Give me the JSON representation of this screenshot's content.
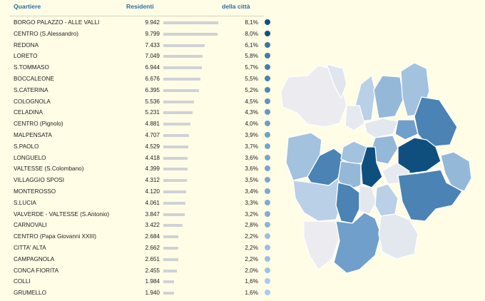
{
  "header": {
    "quartiere": "Quartiere",
    "residenti": "Residenti",
    "pct": "della città"
  },
  "colors": {
    "scale_dark": "#0f4f7e",
    "scale_light": "#a8ccea"
  },
  "chart_data": {
    "type": "table",
    "max_value": 9942,
    "rows": [
      {
        "name": "BORGO PALAZZO - ALLE VALLI",
        "value": 9942,
        "value_label": "9.942",
        "pct": 8.1,
        "pct_label": "8,1%"
      },
      {
        "name": "CENTRO (S.Alessandro)",
        "value": 9799,
        "value_label": "9.799",
        "pct": 8.0,
        "pct_label": "8,0%"
      },
      {
        "name": "REDONA",
        "value": 7433,
        "value_label": "7.433",
        "pct": 6.1,
        "pct_label": "6,1%"
      },
      {
        "name": "LORETO",
        "value": 7049,
        "value_label": "7.049",
        "pct": 5.8,
        "pct_label": "5,8%"
      },
      {
        "name": "S.TOMMASO",
        "value": 6944,
        "value_label": "6.944",
        "pct": 5.7,
        "pct_label": "5,7%"
      },
      {
        "name": "BOCCALEONE",
        "value": 6676,
        "value_label": "6.676",
        "pct": 5.5,
        "pct_label": "5,5%"
      },
      {
        "name": "S.CATERINA",
        "value": 6395,
        "value_label": "6.395",
        "pct": 5.2,
        "pct_label": "5,2%"
      },
      {
        "name": "COLOGNOLA",
        "value": 5536,
        "value_label": "5.536",
        "pct": 4.5,
        "pct_label": "4,5%"
      },
      {
        "name": "CELADINA",
        "value": 5231,
        "value_label": "5.231",
        "pct": 4.3,
        "pct_label": "4,3%"
      },
      {
        "name": "CENTRO (Pignolo)",
        "value": 4881,
        "value_label": "4.881",
        "pct": 4.0,
        "pct_label": "4,0%"
      },
      {
        "name": "MALPENSATA",
        "value": 4707,
        "value_label": "4.707",
        "pct": 3.9,
        "pct_label": "3,9%"
      },
      {
        "name": "S.PAOLO",
        "value": 4529,
        "value_label": "4.529",
        "pct": 3.7,
        "pct_label": "3,7%"
      },
      {
        "name": "LONGUELO",
        "value": 4418,
        "value_label": "4.418",
        "pct": 3.6,
        "pct_label": "3,6%"
      },
      {
        "name": "VALTESSE (S.Colombano)",
        "value": 4399,
        "value_label": "4.399",
        "pct": 3.6,
        "pct_label": "3,6%"
      },
      {
        "name": "VILLAGGIO SPOSI",
        "value": 4312,
        "value_label": "4.312",
        "pct": 3.5,
        "pct_label": "3,5%"
      },
      {
        "name": "MONTEROSSO",
        "value": 4120,
        "value_label": "4.120",
        "pct": 3.4,
        "pct_label": "3,4%"
      },
      {
        "name": "S.LUCIA",
        "value": 4061,
        "value_label": "4.061",
        "pct": 3.3,
        "pct_label": "3,3%"
      },
      {
        "name": "VALVERDE - VALTESSE (S.Antonio)",
        "value": 3847,
        "value_label": "3.847",
        "pct": 3.2,
        "pct_label": "3,2%"
      },
      {
        "name": "CARNOVALI",
        "value": 3422,
        "value_label": "3.422",
        "pct": 2.8,
        "pct_label": "2,8%"
      },
      {
        "name": "CENTRO (Papa Giovanni XXIII)",
        "value": 2684,
        "value_label": "2.684",
        "pct": 2.2,
        "pct_label": "2,2%"
      },
      {
        "name": "CITTA' ALTA",
        "value": 2662,
        "value_label": "2.662",
        "pct": 2.2,
        "pct_label": "2,2%"
      },
      {
        "name": "CAMPAGNOLA",
        "value": 2651,
        "value_label": "2.651",
        "pct": 2.2,
        "pct_label": "2,2%"
      },
      {
        "name": "CONCA FIORITA",
        "value": 2455,
        "value_label": "2.455",
        "pct": 2.0,
        "pct_label": "2,0%"
      },
      {
        "name": "COLLI",
        "value": 1984,
        "value_label": "1.984",
        "pct": 1.6,
        "pct_label": "1,6%"
      },
      {
        "name": "GRUMELLO",
        "value": 1940,
        "value_label": "1.940",
        "pct": 1.6,
        "pct_label": "1,6%"
      }
    ]
  }
}
